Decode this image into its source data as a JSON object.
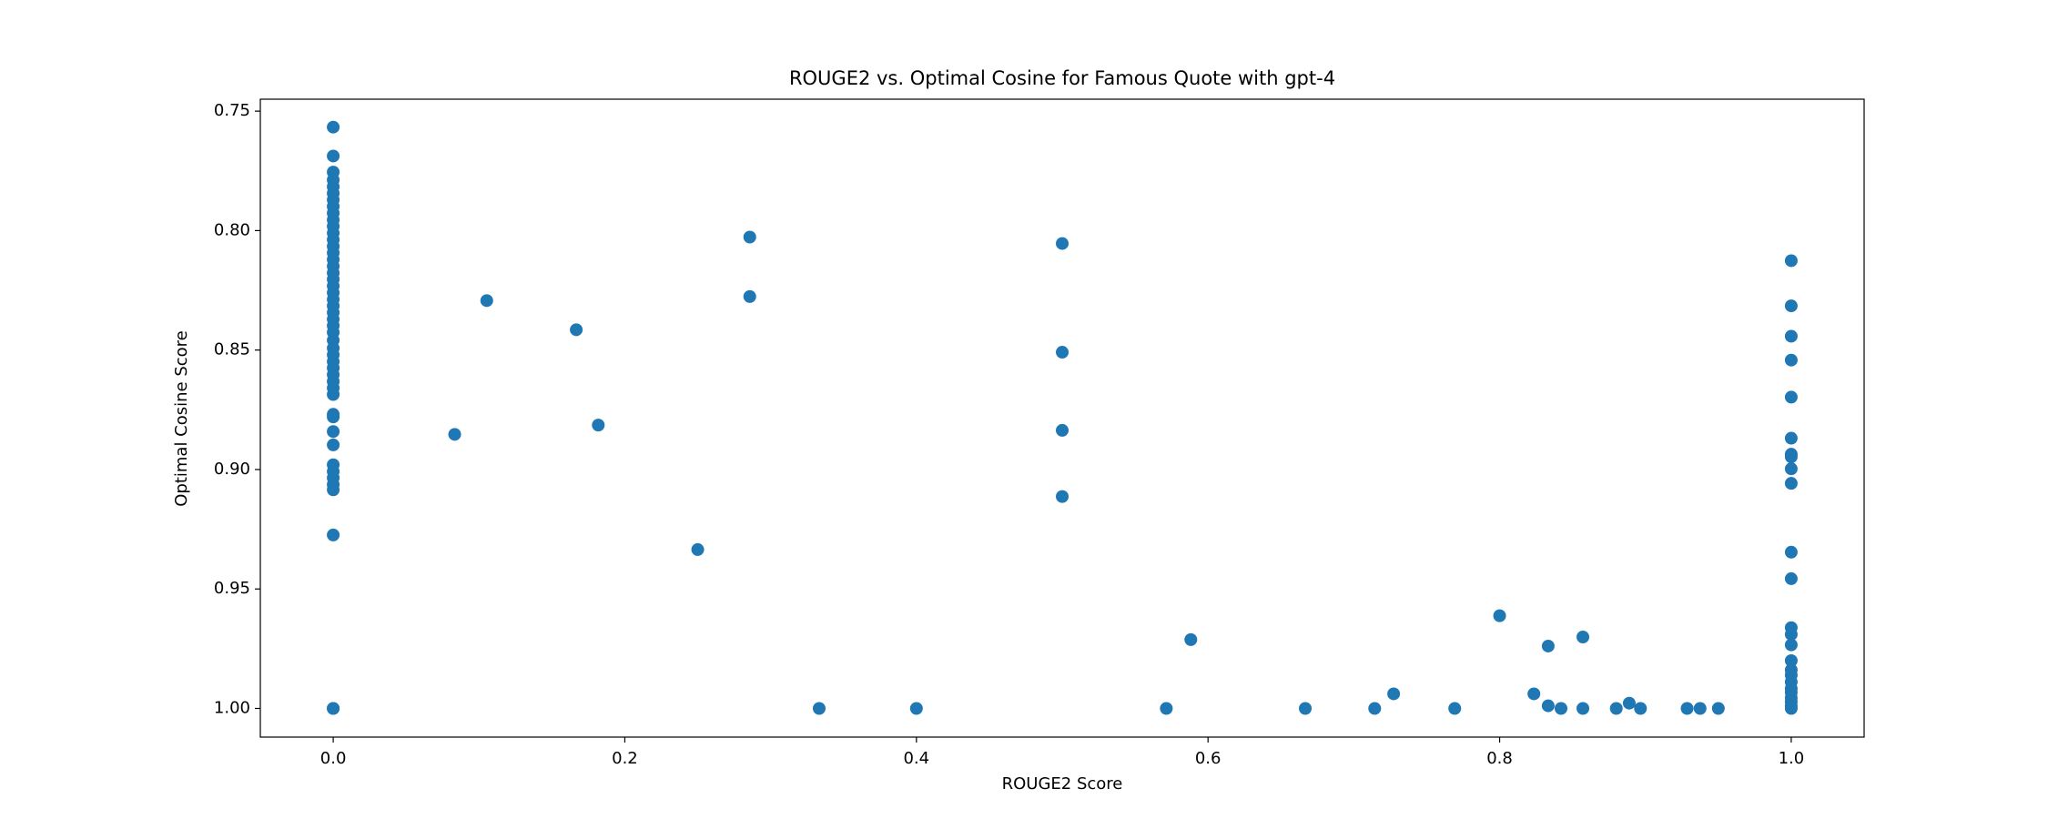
{
  "chart_data": {
    "type": "scatter",
    "title": "ROUGE2 vs. Optimal Cosine for Famous Quote with gpt-4",
    "x_label": "ROUGE2 Score",
    "y_label": "Optimal Cosine Score",
    "color": "#1f77b4",
    "xlim": [
      -0.05,
      1.05
    ],
    "ylim": [
      1.012,
      0.745
    ],
    "xticks": [
      {
        "value": 0,
        "label": "0.0"
      },
      0.2,
      0.4,
      0.6,
      0.8,
      {
        "value": 1,
        "label": "1.0"
      }
    ],
    "yticks": [
      0.75,
      {
        "value": 0.8,
        "label": "0.80"
      },
      0.85,
      {
        "value": 0.9,
        "label": "0.90"
      },
      0.95,
      {
        "value": 1,
        "label": "1.00"
      }
    ],
    "x": [
      0,
      0,
      0,
      0,
      0,
      0,
      0,
      0,
      0,
      0,
      0,
      0,
      0,
      0,
      0,
      0,
      0,
      0,
      0,
      0,
      0,
      0,
      0,
      0,
      0,
      0,
      0,
      0,
      0,
      0,
      0,
      0,
      0,
      0,
      0,
      0,
      0,
      0,
      0,
      0,
      0,
      0,
      0,
      0,
      0,
      0,
      0,
      0,
      0.0833,
      0.1053,
      0.1667,
      0.1818,
      0.25,
      0.2857,
      0.2857,
      0.3333,
      0.4,
      0.5,
      0.5,
      0.5,
      0.5,
      0.5714,
      0.5882,
      0.6667,
      0.7143,
      0.7273,
      0.7692,
      0.8,
      0.8235,
      0.8333,
      0.8333,
      0.8421,
      0.8571,
      0.8571,
      0.88,
      0.8889,
      0.8966,
      0.9286,
      0.9375,
      0.95,
      1,
      1,
      1,
      1,
      1,
      1,
      1,
      1,
      1,
      1,
      1,
      1,
      1,
      1,
      1,
      1,
      1,
      1,
      1,
      1,
      1,
      1,
      1,
      1,
      1
    ],
    "y": [
      0.7567,
      0.7688,
      0.7755,
      0.7788,
      0.7816,
      0.7844,
      0.7871,
      0.7899,
      0.7927,
      0.7955,
      0.7982,
      0.801,
      0.8038,
      0.8066,
      0.8093,
      0.8121,
      0.8149,
      0.8177,
      0.8204,
      0.8232,
      0.826,
      0.8288,
      0.8315,
      0.8343,
      0.8371,
      0.8398,
      0.8426,
      0.8459,
      0.8492,
      0.852,
      0.8548,
      0.8575,
      0.8603,
      0.8631,
      0.8659,
      0.8686,
      0.8769,
      0.878,
      0.8841,
      0.8897,
      0.898,
      0.9008,
      0.9035,
      0.9063,
      0.9085,
      0.9274,
      1.0,
      1.0,
      0.8853,
      0.8293,
      0.8415,
      0.8814,
      0.9335,
      0.8027,
      0.8276,
      1.0,
      1.0,
      0.8054,
      0.8509,
      0.8836,
      0.9113,
      1.0,
      0.9712,
      1.0,
      1.0,
      0.9939,
      1.0,
      0.9612,
      0.9939,
      0.9739,
      0.9989,
      1.0,
      0.9701,
      1.0,
      1.0,
      0.9978,
      1.0,
      1.0,
      1.0,
      1.0,
      0.8126,
      0.8315,
      0.8442,
      0.8542,
      0.8697,
      0.8869,
      0.8936,
      0.8947,
      0.8997,
      0.9058,
      0.9346,
      0.9457,
      0.9662,
      0.969,
      0.9734,
      0.98,
      0.9839,
      0.9861,
      0.9889,
      0.9917,
      0.9933,
      0.9956,
      0.9972,
      0.9989,
      1.0
    ]
  }
}
